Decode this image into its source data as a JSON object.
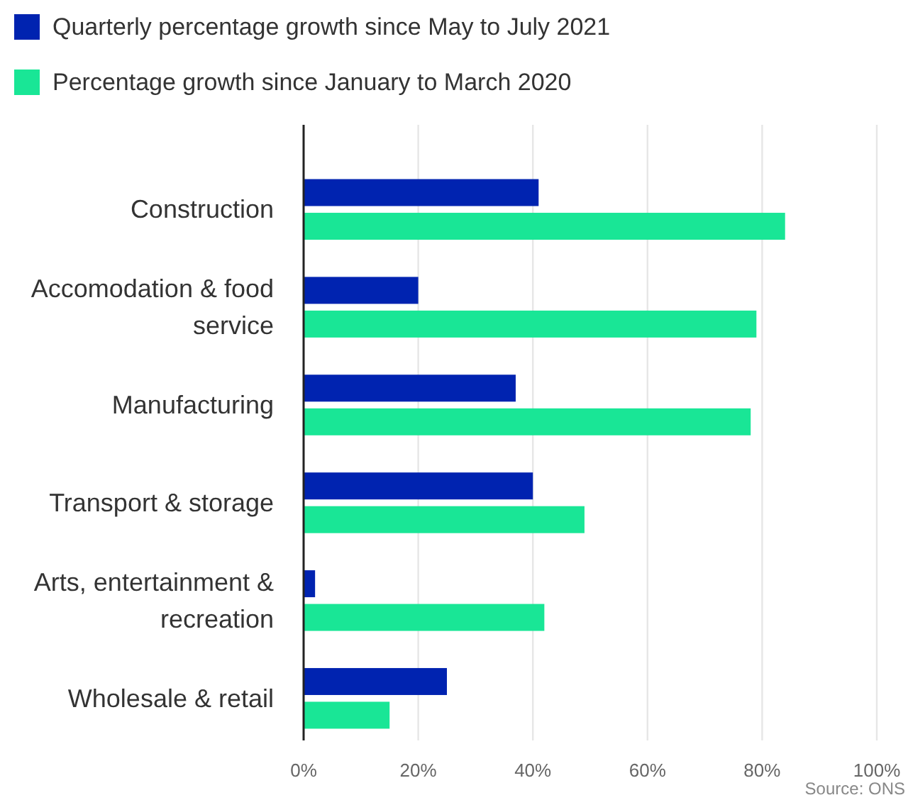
{
  "chart_data": {
    "type": "bar",
    "orientation": "horizontal",
    "categories": [
      "Construction",
      "Accomodation & food service",
      "Manufacturing",
      "Transport & storage",
      "Arts, entertainment & recreation",
      "Wholesale & retail"
    ],
    "series": [
      {
        "name": "Quarterly percentage growth since May to July 2021",
        "color": "#0023b0",
        "values": [
          41,
          20,
          37,
          40,
          2,
          25
        ]
      },
      {
        "name": "Percentage growth since January to March 2020",
        "color": "#19e696",
        "values": [
          84,
          79,
          78,
          49,
          42,
          15
        ]
      }
    ],
    "xlim": [
      0,
      100
    ],
    "xticks": [
      {
        "value": 0,
        "label": "0%"
      },
      {
        "value": 20,
        "label": "20%"
      },
      {
        "value": 40,
        "label": "40%"
      },
      {
        "value": 60,
        "label": "60%"
      },
      {
        "value": 80,
        "label": "80%"
      },
      {
        "value": 100,
        "label": "100%"
      }
    ],
    "grid": "x",
    "legend": "top left",
    "annotations": [
      "Source: ONS"
    ]
  }
}
